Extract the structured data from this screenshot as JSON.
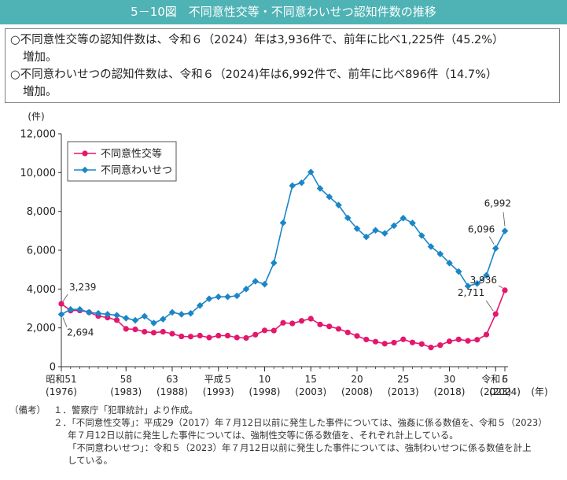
{
  "title": "5－10図　不同意性交等・不同意わいせつ認知件数の推移",
  "summary": [
    {
      "line1": "○不同意性交等の認知件数は、令和６（2024）年は3,936件で、前年に比べ1,225件（45.2%）",
      "line2": "増加。"
    },
    {
      "line1": "○不同意わいせつの認知件数は、令和６（2024)年は6,992件で、前年に比べ896件（14.7%）",
      "line2": "増加。"
    }
  ],
  "notes": {
    "label": "（備考）",
    "items": [
      "１．警察庁「犯罪統計」より作成。",
      "２．「不同意性交等」：平成29（2017）年７月12日以前に発生した事件については、強姦に係る数値を、令和５（2023）",
      "年７月12日以前に発生した事件については、強制性交等に係る数値を、それぞれ計上している。",
      "「不同意わいせつ」：令和５（2023）年７月12日以前に発生した事件については、強制わいせつに係る数値を計上",
      "している。"
    ]
  },
  "chart_data": {
    "type": "line",
    "yunit": "(件)",
    "xunit": "(年)",
    "ylim": [
      0,
      12000
    ],
    "yticks": [
      0,
      2000,
      4000,
      6000,
      8000,
      10000,
      12000
    ],
    "ytick_labels": [
      "0",
      "2,000",
      "4,000",
      "6,000",
      "8,000",
      "10,000",
      "12,000"
    ],
    "x": [
      1976,
      1977,
      1978,
      1979,
      1980,
      1981,
      1982,
      1983,
      1984,
      1985,
      1986,
      1987,
      1988,
      1989,
      1990,
      1991,
      1992,
      1993,
      1994,
      1995,
      1996,
      1997,
      1998,
      1999,
      2000,
      2001,
      2002,
      2003,
      2004,
      2005,
      2006,
      2007,
      2008,
      2009,
      2010,
      2011,
      2012,
      2013,
      2014,
      2015,
      2016,
      2017,
      2018,
      2019,
      2020,
      2021,
      2022,
      2023,
      2024
    ],
    "xticks": [
      {
        "x": 1976,
        "line1": "昭和51",
        "line2": "(1976)"
      },
      {
        "x": 1983,
        "line1": "58",
        "line2": "(1983)"
      },
      {
        "x": 1988,
        "line1": "63",
        "line2": "(1988)"
      },
      {
        "x": 1993,
        "line1": "平成５",
        "line2": "(1993)"
      },
      {
        "x": 1998,
        "line1": "10",
        "line2": "(1998)"
      },
      {
        "x": 2003,
        "line1": "15",
        "line2": "(2003)"
      },
      {
        "x": 2008,
        "line1": "20",
        "line2": "(2008)"
      },
      {
        "x": 2013,
        "line1": "25",
        "line2": "(2013)"
      },
      {
        "x": 2018,
        "line1": "30",
        "line2": "(2018)"
      },
      {
        "x": 2023,
        "line1": "令和５",
        "line2": "(2023)"
      },
      {
        "x": 2024,
        "line1": "6",
        "line2": "(2024)"
      }
    ],
    "series": [
      {
        "name": "不同意性交等",
        "color": "#e4176d",
        "marker": "circle",
        "values": [
          3239,
          2890,
          2897,
          2800,
          2610,
          2530,
          2400,
          1950,
          1920,
          1800,
          1750,
          1800,
          1700,
          1560,
          1550,
          1600,
          1500,
          1600,
          1600,
          1500,
          1480,
          1650,
          1870,
          1860,
          2260,
          2230,
          2360,
          2472,
          2176,
          2076,
          1948,
          1766,
          1582,
          1402,
          1289,
          1185,
          1240,
          1409,
          1250,
          1167,
          989,
          1109,
          1307,
          1405,
          1332,
          1388,
          1655,
          2711,
          3936
        ]
      },
      {
        "name": "不同意わいせつ",
        "color": "#1a86c7",
        "marker": "diamond",
        "values": [
          2694,
          2950,
          2950,
          2800,
          2750,
          2700,
          2650,
          2500,
          2390,
          2600,
          2250,
          2450,
          2800,
          2700,
          2750,
          3150,
          3500,
          3600,
          3600,
          3650,
          4000,
          4400,
          4251,
          5346,
          7412,
          9326,
          9476,
          10029,
          9184,
          8751,
          8326,
          7664,
          7111,
          6688,
          7027,
          6870,
          7263,
          7654,
          7400,
          6755,
          6188,
          5809,
          5340,
          4900,
          4154,
          4283,
          4708,
          6096,
          6992
        ]
      }
    ],
    "annotations": [
      {
        "text": "3,239",
        "series": 0,
        "x": 1976
      },
      {
        "text": "2,694",
        "series": 1,
        "x": 1976
      },
      {
        "text": "6,992",
        "series": 1,
        "x": 2024
      },
      {
        "text": "6,096",
        "series": 1,
        "x": 2023
      },
      {
        "text": "3,936",
        "series": 0,
        "x": 2024
      },
      {
        "text": "2,711",
        "series": 0,
        "x": 2023
      }
    ],
    "legend_position": "top-left"
  }
}
